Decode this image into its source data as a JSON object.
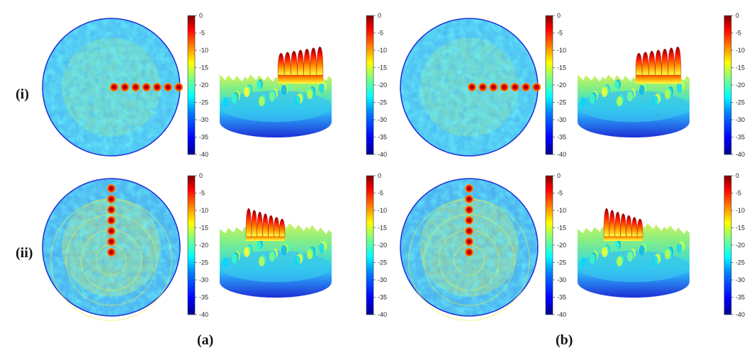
{
  "figure": {
    "row_labels": [
      "(i)",
      "(ii)"
    ],
    "panel_labels": [
      "(a)",
      "(b)"
    ]
  },
  "colorbar": {
    "ticks": [
      "0",
      "-5",
      "-10",
      "-15",
      "-20",
      "-25",
      "-30",
      "-35",
      "-40"
    ],
    "colormap": [
      "#00008f",
      "#0000ff",
      "#0080ff",
      "#00ffff",
      "#80ff80",
      "#ffff00",
      "#ff8000",
      "#ff0000",
      "#800000"
    ]
  },
  "patterns": {
    "row_i": {
      "beam_layout": "horizontal",
      "beam_count": 7,
      "background_color": "#52c8f2",
      "circle_tint": "#9ae6a0"
    },
    "row_ii": {
      "beam_layout": "vertical",
      "beam_count": 7,
      "background_color": "#4fb9f0",
      "circle_tint": "#c9ec70"
    }
  },
  "colors": {
    "beam_outer": "#ff2a00",
    "beam_inner": "#8a0000",
    "rim": "#1d2fd6",
    "base_top": "#3b82f0",
    "base_bottom": "#1f2fd8"
  }
}
